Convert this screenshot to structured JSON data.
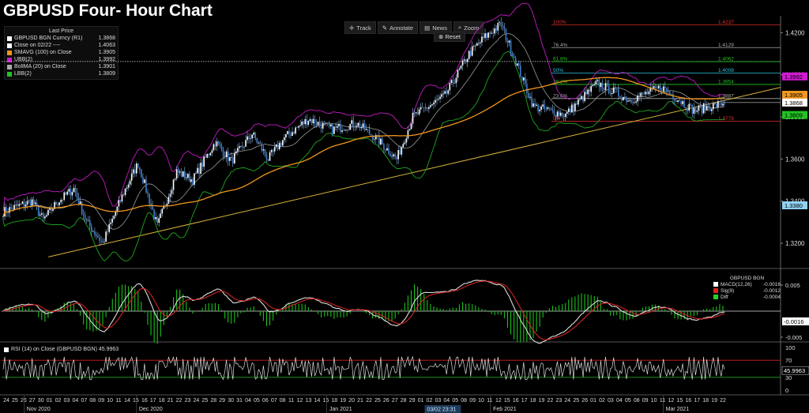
{
  "title": "GBPUSD Four- Hour Chart",
  "toolbar": {
    "track_label": "Track",
    "annotate_label": "Annotate",
    "news_label": "News",
    "zoom_label": "Zoom",
    "reset_label": "Reset"
  },
  "legend": {
    "header": "Last Price",
    "items": [
      {
        "name": "GBPUSD BGN Curncy  (R1)",
        "value": "1.3868",
        "color": "#ffffff"
      },
      {
        "name": "Close on 02/22 ----",
        "value": "1.4063",
        "color": "#ffffff"
      },
      {
        "name": "SMAVG (100)  on Close",
        "value": "1.3905",
        "color": "#f0961e"
      },
      {
        "name": "UBB(2)",
        "value": "1.3992",
        "color": "#d11ad1"
      },
      {
        "name": "BollMA (20)  on Close",
        "value": "1.3901",
        "color": "#aaaaaa"
      },
      {
        "name": "LBB(2)",
        "value": "1.3809",
        "color": "#22c322"
      }
    ]
  },
  "macd_legend": {
    "header": "GBPUSD BGN",
    "items": [
      {
        "name": "MACD(12,26)",
        "value": "-0.0016",
        "color": "#ffffff"
      },
      {
        "name": "Sig(9)",
        "value": "-0.0012",
        "color": "#e02020"
      },
      {
        "name": "Diff",
        "value": "-0.0004",
        "color": "#22d422"
      }
    ]
  },
  "rsi_legend": {
    "label": "RSI (14)  on Close (GBPUSD BGN) 45.9963"
  },
  "chart_data": {
    "type": "line",
    "y_ticks": [
      "1.4200",
      "1.4000",
      "1.3800",
      "1.3600",
      "1.3400",
      "1.3200"
    ],
    "ylim": [
      1.308,
      1.428
    ],
    "price_tags": [
      {
        "value": 1.3992,
        "label": "1.3992",
        "color": "#d11ad1",
        "text_color": "#000000"
      },
      {
        "value": 1.3905,
        "label": "1.3905",
        "color": "#f0961e",
        "text_color": "#000000"
      },
      {
        "value": 1.3868,
        "label": "1.3868",
        "color": "#ffffff",
        "text_color": "#000000"
      },
      {
        "value": 1.3809,
        "label": "1.3809",
        "color": "#22c322",
        "text_color": "#000000"
      },
      {
        "value": 1.338,
        "label": "1.3380",
        "color": "#8fd3f4",
        "text_color": "#000000"
      }
    ],
    "close_line": {
      "label": "Close on 02/22",
      "value": 1.4063
    },
    "fibonacci": [
      {
        "pct": "100%",
        "value": 1.4237,
        "price": "1.4237",
        "color": "#e03030"
      },
      {
        "pct": "76.4%",
        "value": 1.4129,
        "price": "1.4129",
        "color": "#aaaaaa"
      },
      {
        "pct": "61.8%",
        "value": 1.4062,
        "price": "1.4062",
        "color": "#22c322"
      },
      {
        "pct": "50%",
        "value": 1.4008,
        "price": "1.4008",
        "color": "#29c6e0"
      },
      {
        "pct": "38.2%",
        "value": 1.3954,
        "price": "1.3954",
        "color": "#22c322"
      },
      {
        "pct": "23.6%",
        "value": 1.3887,
        "price": "1.3887",
        "color": "#aaaaaa"
      },
      {
        "pct": "0%",
        "value": 1.3779,
        "price": "1.3779",
        "color": "#e03030"
      }
    ],
    "price_series": {
      "n": 250,
      "keys": [
        [
          0,
          1.335
        ],
        [
          18,
          1.34
        ],
        [
          25,
          1.331
        ],
        [
          33,
          1.339
        ],
        [
          44,
          1.346
        ],
        [
          52,
          1.33
        ],
        [
          62,
          1.32
        ],
        [
          75,
          1.344
        ],
        [
          84,
          1.358
        ],
        [
          96,
          1.328
        ],
        [
          108,
          1.354
        ],
        [
          118,
          1.35
        ],
        [
          132,
          1.368
        ],
        [
          142,
          1.359
        ],
        [
          155,
          1.372
        ],
        [
          165,
          1.36
        ],
        [
          175,
          1.37
        ],
        [
          190,
          1.379
        ],
        [
          205,
          1.374
        ],
        [
          220,
          1.377
        ],
        [
          232,
          1.37
        ],
        [
          245,
          1.36
        ],
        [
          255,
          1.38
        ],
        [
          275,
          1.39
        ],
        [
          290,
          1.41
        ],
        [
          300,
          1.418
        ],
        [
          310,
          1.424
        ],
        [
          330,
          1.385
        ],
        [
          350,
          1.381
        ],
        [
          370,
          1.396
        ],
        [
          390,
          1.388
        ],
        [
          410,
          1.394
        ],
        [
          430,
          1.383
        ],
        [
          450,
          1.3868
        ]
      ],
      "n_points": 450
    },
    "trendline": {
      "start": [
        0.06,
        1.3135
      ],
      "end": [
        1.0,
        1.394
      ]
    },
    "rsi": {
      "levels": [
        100,
        70,
        30,
        0
      ],
      "overbought": 70,
      "oversold": 30,
      "last": "45.9963"
    },
    "macd": {
      "ticks": [
        "0.005",
        "-0.005"
      ],
      "last_tag": "-0.0016"
    },
    "x_axis": {
      "days": [
        "24",
        "25",
        "26",
        "27",
        "30",
        "01",
        "02",
        "03",
        "04",
        "07",
        "08",
        "09",
        "10",
        "11",
        "14",
        "15",
        "16",
        "17",
        "18",
        "21",
        "22",
        "23",
        "24",
        "25",
        "28",
        "29",
        "30",
        "31",
        "04",
        "05",
        "06",
        "07",
        "08",
        "11",
        "12",
        "13",
        "14",
        "15",
        "18",
        "19",
        "20",
        "21",
        "22",
        "25",
        "26",
        "27",
        "28",
        "29",
        "01",
        "02",
        "03",
        "04",
        "05",
        "08",
        "09",
        "10",
        "11",
        "12",
        "15",
        "16",
        "17",
        "18",
        "19",
        "22",
        "23",
        "24",
        "25",
        "26",
        "01",
        "02",
        "03",
        "04",
        "05",
        "08",
        "09",
        "10",
        "11",
        "12",
        "15",
        "16",
        "17",
        "18",
        "19",
        "22"
      ],
      "months": [
        {
          "label": "Nov 2020",
          "at": 3
        },
        {
          "label": "Dec 2020",
          "at": 16
        },
        {
          "label": "Jan 2021",
          "at": 38
        },
        {
          "label": "Feb 2021",
          "at": 57
        },
        {
          "label": "Mar 2021",
          "at": 77
        }
      ],
      "cursor_label": "03/02 23:31"
    }
  }
}
